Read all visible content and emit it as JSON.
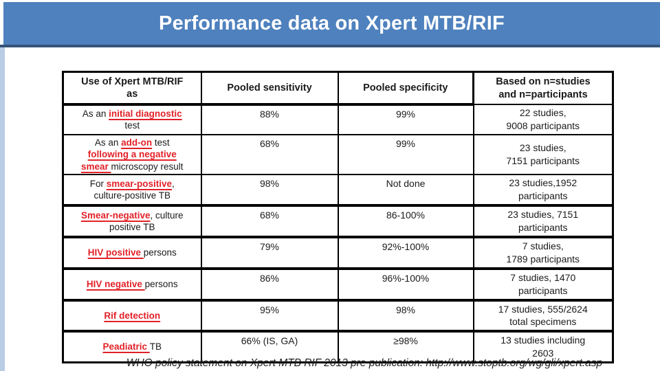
{
  "slide": {
    "title": "Performance data on Xpert MTB/RIF",
    "footer": "WHO policy statement on Xpert MTB RIF 2013 pre publication: http://www.stoptb.org/wg/gli/xpert.asp"
  },
  "colors": {
    "header_bar": "#4E81BD",
    "header_bar_edge": "#35537A",
    "left_stripe": "#B9CDE5",
    "table_border": "#000000",
    "red_highlight": "#E22128"
  },
  "table": {
    "headers": [
      "Use of Xpert MTB/RIF\nas",
      "Pooled sensitivity",
      "Pooled specificity",
      "Based on n=studies\nand n=participants"
    ],
    "rows": [
      {
        "use_segments": [
          {
            "text": "As an ",
            "red": false
          },
          {
            "text": "initial diagnostic",
            "red": true
          },
          {
            "text": "\ntest",
            "red": false
          }
        ],
        "sensitivity": "88%",
        "specificity": "99%",
        "basis": "22 studies,\n9008 participants",
        "thick_top": false
      },
      {
        "use_segments": [
          {
            "text": "As an ",
            "red": false
          },
          {
            "text": "add-on",
            "red": true
          },
          {
            "text": " test\n",
            "red": false
          },
          {
            "text": "following a negative",
            "red": true
          },
          {
            "text": "\n",
            "red": false
          },
          {
            "text": "smear ",
            "red": true
          },
          {
            "text": "microscopy result",
            "red": false
          }
        ],
        "sensitivity": "68%",
        "specificity": "99%",
        "basis": "23 studies,\n7151 participants",
        "thick_top": false
      },
      {
        "use_segments": [
          {
            "text": "For ",
            "red": false
          },
          {
            "text": "smear-positive",
            "red": true
          },
          {
            "text": ",\nculture-positive TB",
            "red": false
          }
        ],
        "sensitivity": "98%",
        "specificity": "Not done",
        "basis": "23 studies,1952\nparticipants",
        "thick_top": false
      },
      {
        "use_segments": [
          {
            "text": "Smear-negative",
            "red": true
          },
          {
            "text": ", culture\npositive TB",
            "red": false
          }
        ],
        "sensitivity": "68%",
        "specificity": "86-100%",
        "basis": "23 studies, 7151\nparticipants",
        "thick_top": true
      },
      {
        "use_segments": [
          {
            "text": "HIV positive ",
            "red": true
          },
          {
            "text": "persons",
            "red": false
          }
        ],
        "sensitivity": "79%",
        "specificity": "92%-100%",
        "basis": "7 studies,\n1789 participants",
        "thick_top": true
      },
      {
        "use_segments": [
          {
            "text": "HIV negative ",
            "red": true
          },
          {
            "text": "persons",
            "red": false
          }
        ],
        "sensitivity": "86%",
        "specificity": "96%-100%",
        "basis": "7 studies, 1470\nparticipants",
        "thick_top": true
      },
      {
        "use_segments": [
          {
            "text": "Rif detection",
            "red": true
          }
        ],
        "sensitivity": "95%",
        "specificity": "98%",
        "basis": "17 studies, 555/2624\ntotal specimens",
        "thick_top": true
      },
      {
        "use_segments": [
          {
            "text": "Peadiatric ",
            "red": true
          },
          {
            "text": "TB",
            "red": false
          }
        ],
        "sensitivity": "66% (IS, GA)",
        "specificity": "≥98%",
        "basis": "13 studies including\n2603",
        "thick_top": true
      }
    ]
  }
}
